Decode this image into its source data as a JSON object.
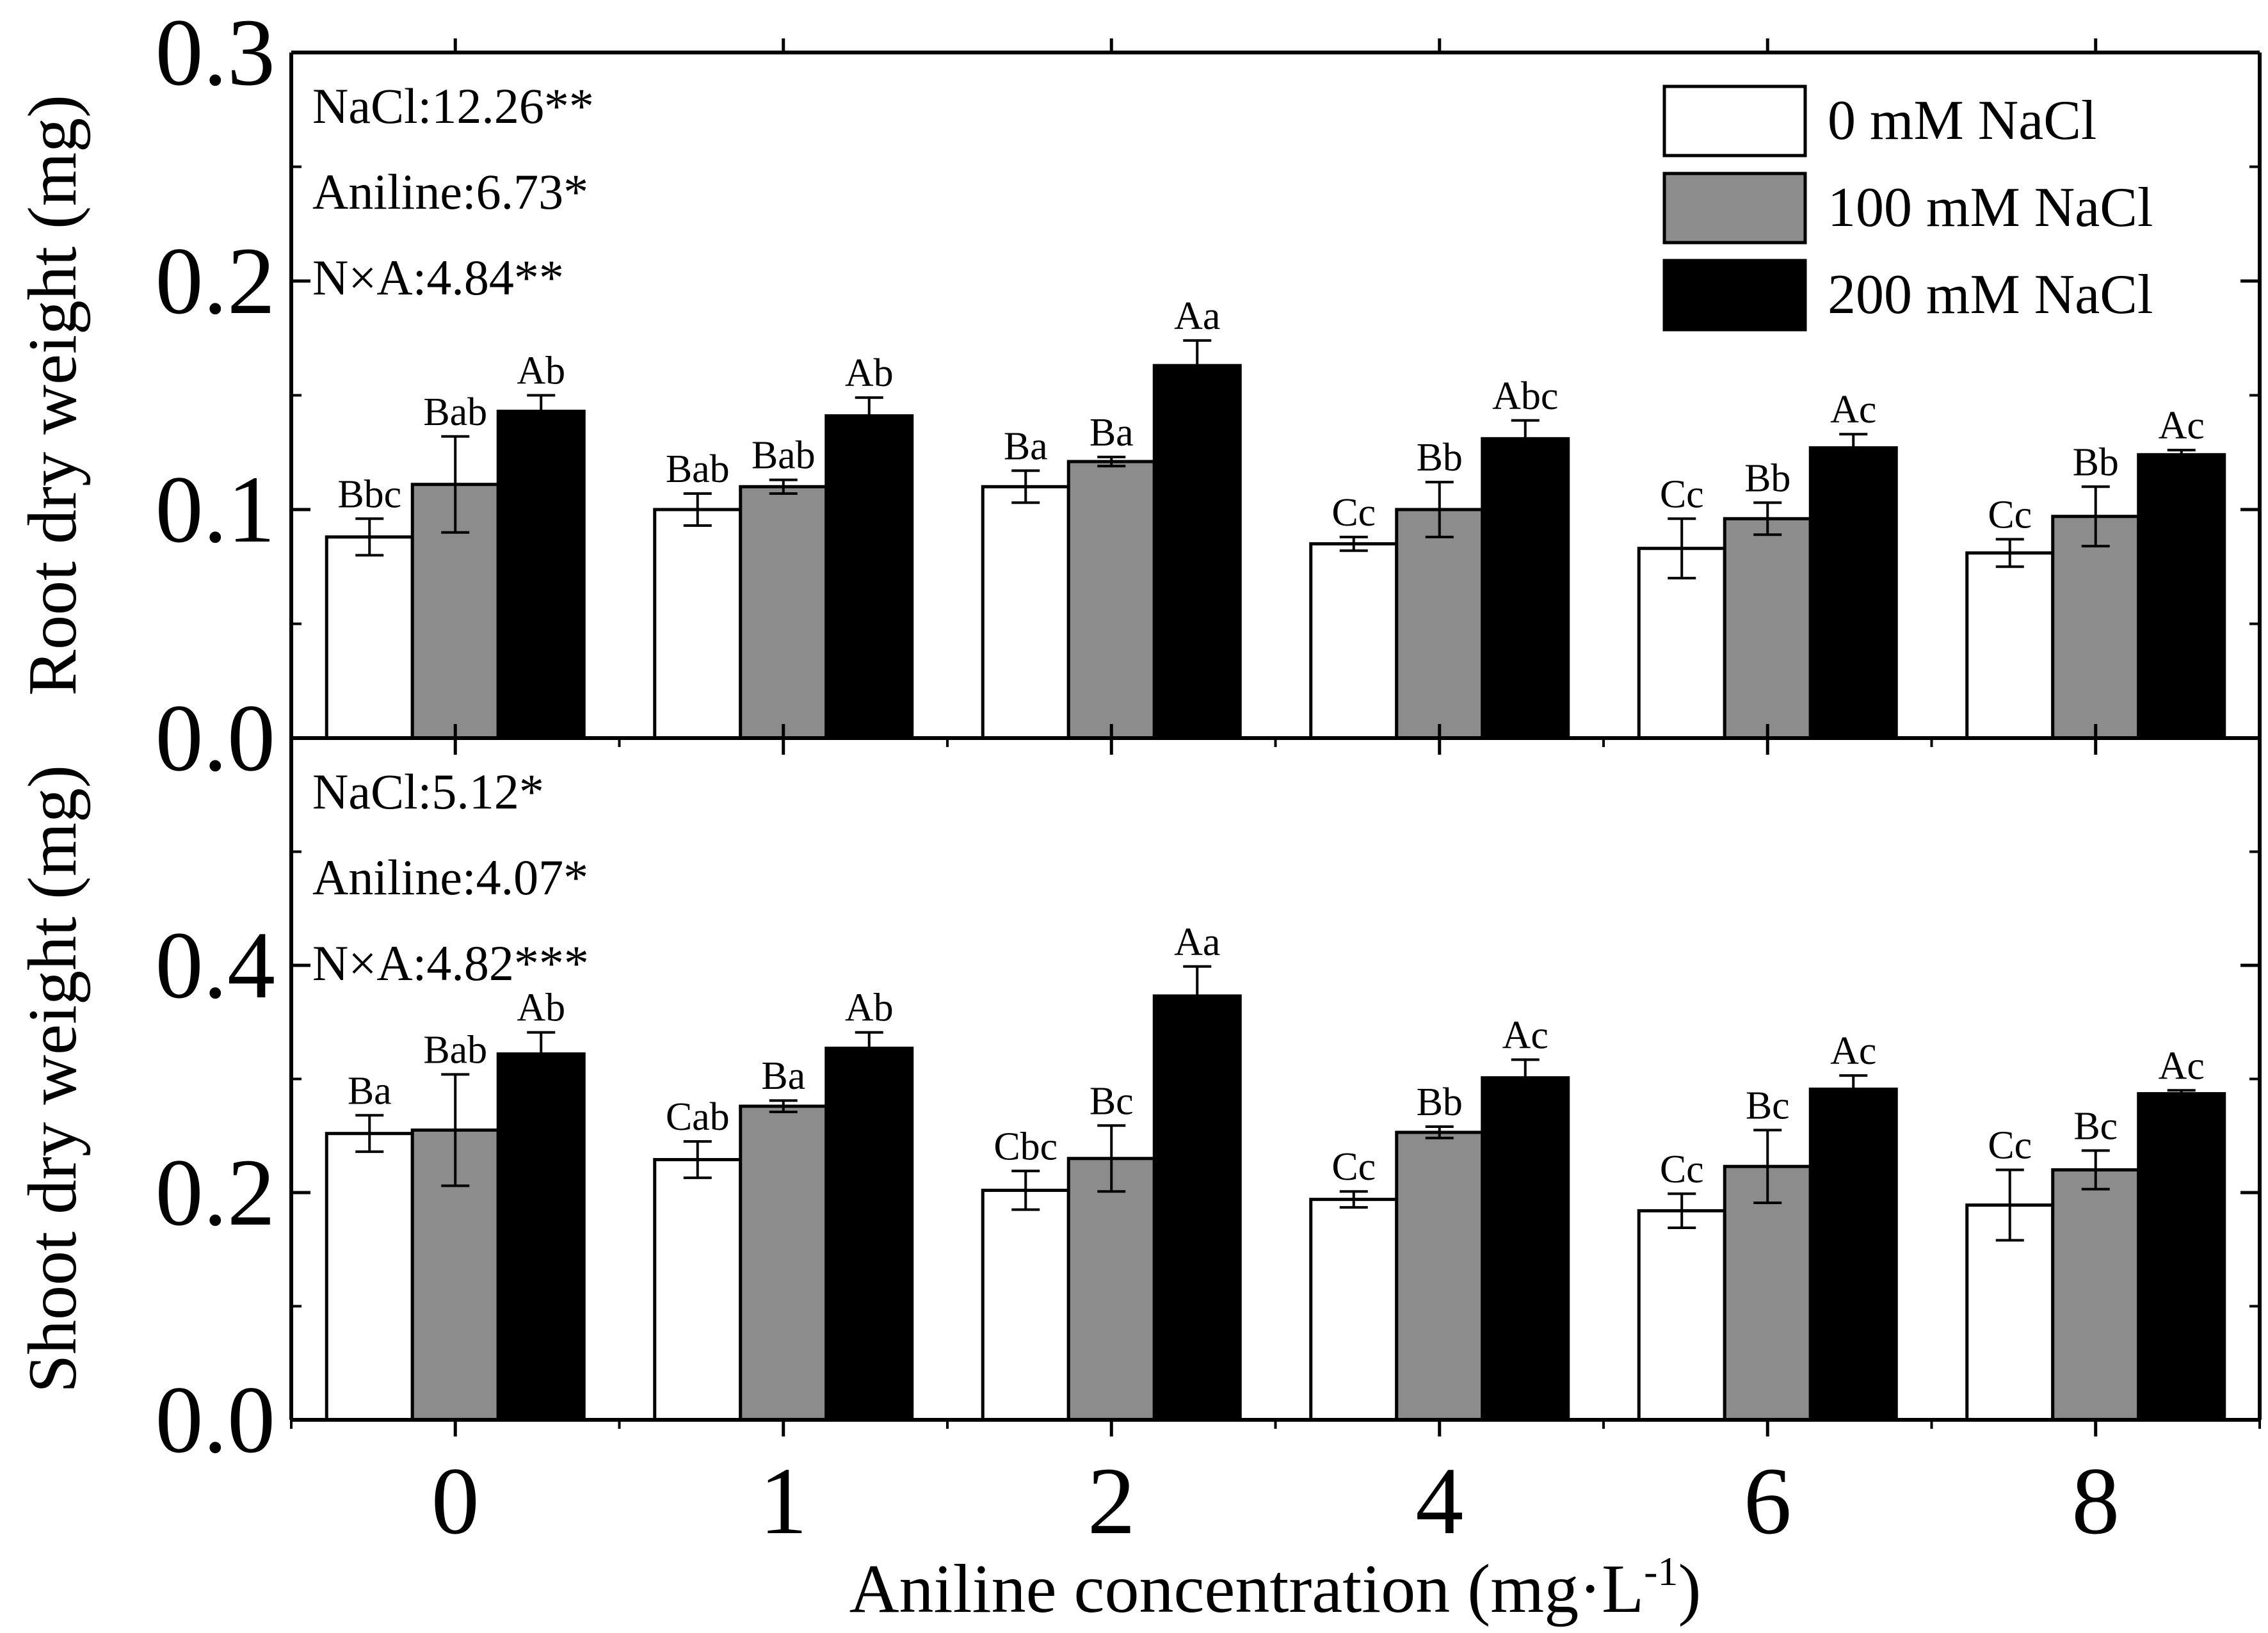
{
  "chart_data": {
    "type": "bar",
    "xlabel": "Aniline concentration (mg·L",
    "xlabel_sup": "-1",
    "xlabel_end": ")",
    "categories": [
      "0",
      "1",
      "2",
      "4",
      "6",
      "8"
    ],
    "series_names": [
      "0 mM NaCl",
      "100 mM NaCl",
      "200 mM NaCl"
    ],
    "series_colors": [
      "#ffffff",
      "#8c8c8c",
      "#000000"
    ],
    "panels": [
      {
        "ylabel": "Root dry weight (mg)",
        "ylim": [
          0,
          0.3
        ],
        "yticks": [
          "0.0",
          "0.1",
          "0.2",
          "0.3"
        ],
        "stats": [
          "NaCl:12.26**",
          "Aniline:6.73*",
          "N×A:4.84**"
        ],
        "series": [
          {
            "name": "0 mM NaCl",
            "values": [
              0.088,
              0.1,
              0.11,
              0.085,
              0.083,
              0.081
            ],
            "errors": [
              0.008,
              0.007,
              0.007,
              0.003,
              0.013,
              0.006
            ],
            "labels": [
              "Bbc",
              "Bab",
              "Ba",
              "Cc",
              "Cc",
              "Cc"
            ]
          },
          {
            "name": "100 mM NaCl",
            "values": [
              0.111,
              0.11,
              0.121,
              0.1,
              0.096,
              0.097
            ],
            "errors": [
              0.021,
              0.003,
              0.002,
              0.012,
              0.007,
              0.013
            ],
            "labels": [
              "Bab",
              "Bab",
              "Ba",
              "Bb",
              "Bb",
              "Bb"
            ]
          },
          {
            "name": "200 mM NaCl",
            "values": [
              0.143,
              0.141,
              0.163,
              0.131,
              0.127,
              0.124
            ],
            "errors": [
              0.007,
              0.008,
              0.011,
              0.008,
              0.006,
              0.002
            ],
            "labels": [
              "Ab",
              "Ab",
              "Aa",
              "Abc",
              "Ac",
              "Ac"
            ]
          }
        ]
      },
      {
        "ylabel": "Shoot dry weight (mg)",
        "ylim": [
          0,
          0.6
        ],
        "yticks": [
          "0.0",
          "0.2",
          "0.4"
        ],
        "stats": [
          "NaCl:5.12*",
          "Aniline:4.07*",
          "N×A:4.82***"
        ],
        "series": [
          {
            "name": "0 mM NaCl",
            "values": [
              0.252,
              0.229,
              0.202,
              0.194,
              0.184,
              0.189
            ],
            "errors": [
              0.016,
              0.016,
              0.017,
              0.007,
              0.015,
              0.031
            ],
            "labels": [
              "Ba",
              "Cab",
              "Cbc",
              "Cc",
              "Cc",
              "Cc"
            ]
          },
          {
            "name": "100 mM NaCl",
            "values": [
              0.255,
              0.276,
              0.23,
              0.253,
              0.223,
              0.22
            ],
            "errors": [
              0.049,
              0.005,
              0.029,
              0.005,
              0.032,
              0.017
            ],
            "labels": [
              "Bab",
              "Ba",
              "Bc",
              "Bb",
              "Bc",
              "Bc"
            ]
          },
          {
            "name": "200 mM NaCl",
            "values": [
              0.322,
              0.327,
              0.373,
              0.301,
              0.291,
              0.287
            ],
            "errors": [
              0.019,
              0.014,
              0.026,
              0.016,
              0.012,
              0.003
            ],
            "labels": [
              "Ab",
              "Ab",
              "Aa",
              "Ac",
              "Ac",
              "Ac"
            ]
          }
        ]
      }
    ]
  }
}
